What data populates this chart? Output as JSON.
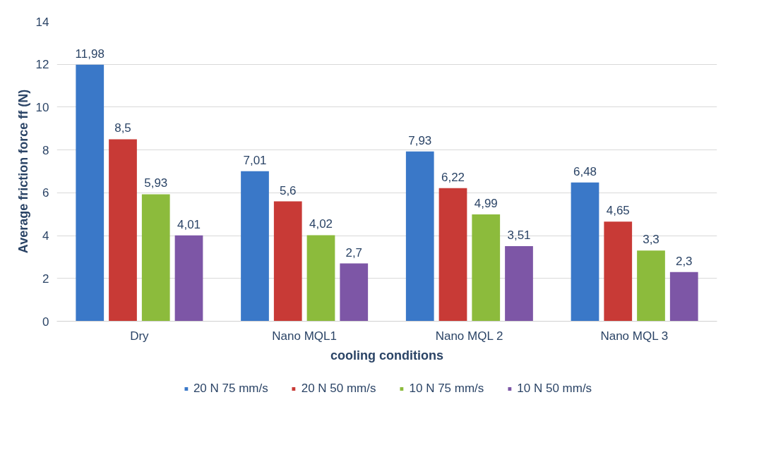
{
  "chart_data": {
    "type": "bar",
    "xlabel": "cooling conditions",
    "ylabel": "Average friction force ff (N)",
    "categories": [
      "Dry",
      "Nano MQL1",
      "Nano MQL 2",
      "Nano MQL 3"
    ],
    "series": [
      {
        "name": "20 N 75 mm/s",
        "color": "#3a78c8",
        "values": [
          11.98,
          7.01,
          7.93,
          6.48
        ],
        "value_labels": [
          "11,98",
          "7,01",
          "7,93",
          "6,48"
        ]
      },
      {
        "name": "20 N 50 mm/s",
        "color": "#c83a36",
        "values": [
          8.5,
          5.6,
          6.22,
          4.65
        ],
        "value_labels": [
          "8,5",
          "5,6",
          "6,22",
          "4,65"
        ]
      },
      {
        "name": "10 N 75 mm/s",
        "color": "#8cbb3c",
        "values": [
          5.93,
          4.02,
          4.99,
          3.3
        ],
        "value_labels": [
          "5,93",
          "4,02",
          "4,99",
          "3,3"
        ]
      },
      {
        "name": "10 N 50 mm/s",
        "color": "#7d56a6",
        "values": [
          4.01,
          2.7,
          3.51,
          2.3
        ],
        "value_labels": [
          "4,01",
          "2,7",
          "3,51",
          "2,3"
        ]
      }
    ],
    "ylim": [
      0,
      14
    ],
    "yticks": [
      0,
      2,
      4,
      6,
      8,
      10,
      12,
      14
    ],
    "grid": "y",
    "legend": "bottom"
  }
}
